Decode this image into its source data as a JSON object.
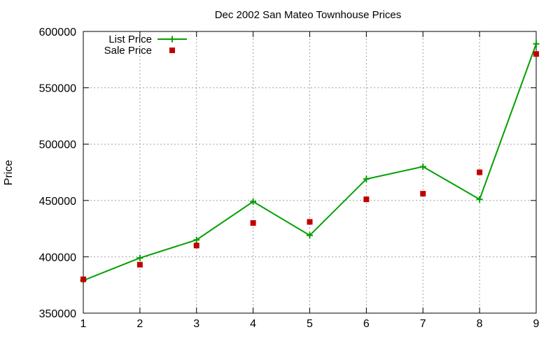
{
  "chart_data": {
    "type": "line",
    "title": "Dec 2002 San Mateo Townhouse Prices",
    "xlabel": "",
    "ylabel": "Price",
    "xlim": [
      1,
      9
    ],
    "ylim": [
      350000,
      600000
    ],
    "xticks": [
      1,
      2,
      3,
      4,
      5,
      6,
      7,
      8,
      9
    ],
    "yticks": [
      350000,
      400000,
      450000,
      500000,
      550000,
      600000
    ],
    "grid": true,
    "legend": "top-left",
    "series": [
      {
        "name": "List Price",
        "style": "linespoints",
        "marker": "plus",
        "color": "#00a000",
        "x": [
          1,
          2,
          3,
          4,
          5,
          6,
          7,
          8,
          9
        ],
        "y": [
          379000,
          399000,
          415000,
          449000,
          419000,
          469000,
          480000,
          451000,
          589000
        ]
      },
      {
        "name": "Sale Price",
        "style": "points",
        "marker": "square",
        "color": "#c00000",
        "x": [
          1,
          2,
          3,
          4,
          5,
          6,
          7,
          8,
          9
        ],
        "y": [
          380000,
          393000,
          410000,
          430000,
          431000,
          451000,
          456000,
          475000,
          580000
        ]
      }
    ]
  }
}
